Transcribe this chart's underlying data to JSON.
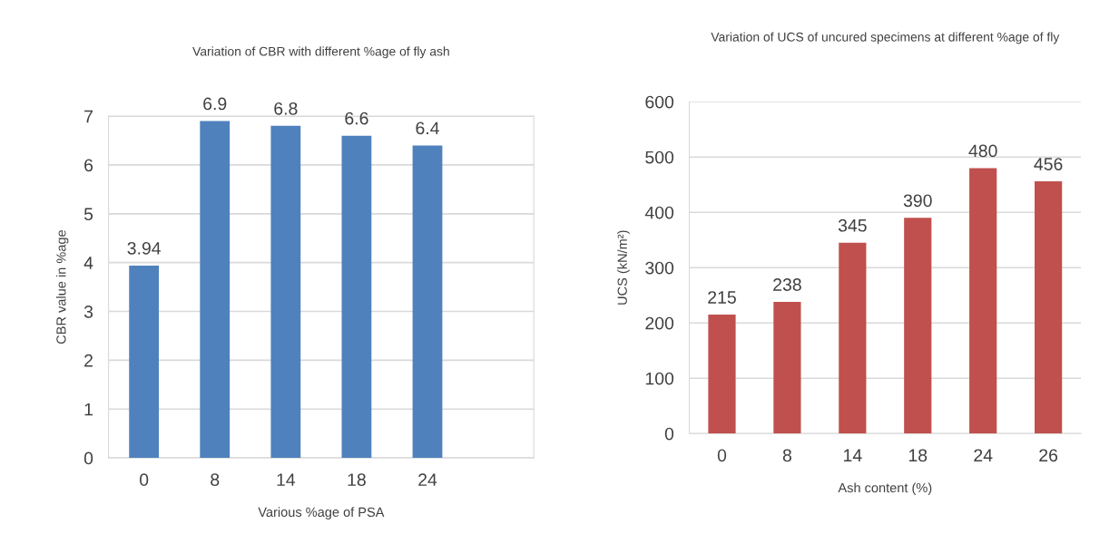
{
  "chart_data": [
    {
      "type": "bar",
      "title": "Variation of CBR with different %age of fly ash",
      "xlabel": "Various %age of PSA",
      "ylabel": "CBR value in %age",
      "categories": [
        "0",
        "8",
        "14",
        "18",
        "24",
        null
      ],
      "series": [
        {
          "color": "#4f81bd",
          "values": [
            3.94,
            6.9,
            6.8,
            6.6,
            6.4,
            null
          ]
        }
      ],
      "ylim": [
        0,
        7
      ],
      "yticks": [
        0,
        1,
        2,
        3,
        4,
        5,
        6,
        7
      ],
      "grid": "y",
      "data_labels": true
    },
    {
      "type": "bar",
      "title": "Variation of UCS of uncured specimens at different %age of fly",
      "xlabel": "Ash content (%)",
      "ylabel": "UCS (kN/m²)",
      "categories": [
        "0",
        "8",
        "14",
        "18",
        "24",
        "26"
      ],
      "series": [
        {
          "color": "#c0504d",
          "values": [
            215,
            238,
            345,
            390,
            480,
            456
          ]
        }
      ],
      "ylim": [
        0,
        600
      ],
      "yticks": [
        0,
        100,
        200,
        300,
        400,
        500,
        600
      ],
      "grid": "y",
      "data_labels": true
    }
  ]
}
